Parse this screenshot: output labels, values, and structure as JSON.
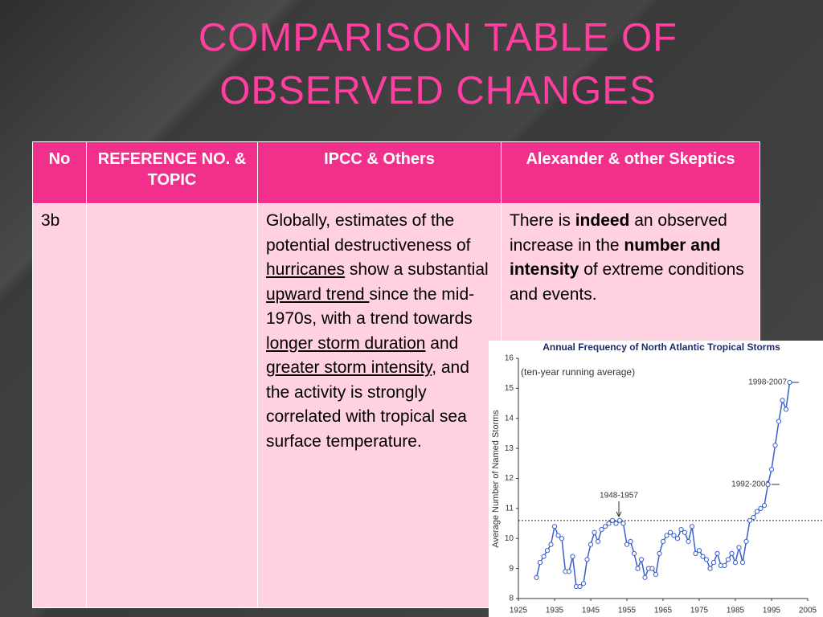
{
  "title": "COMPARISON TABLE OF OBSERVED CHANGES",
  "table": {
    "header": [
      "No",
      "REFERENCE NO. & TOPIC",
      "IPCC & Others",
      "Alexander & other Skeptics"
    ],
    "rows": [
      {
        "no": "3b",
        "ipcc": [
          "Globally, estimates of the potential destructiveness of ",
          "hurricanes",
          " show a substantial ",
          "upward trend ",
          "since the mid-1970s, with a trend towards ",
          "longer storm duration",
          " and ",
          "greater storm intensity",
          ", and the activity is strongly correlated with tropical sea surface temperature."
        ],
        "skeptics": [
          "There is ",
          "indeed",
          " an observed increase in the ",
          "number and intensity",
          " of extreme conditions and events."
        ]
      }
    ]
  },
  "chart_data": {
    "type": "line",
    "title": "Annual Frequency of North Atlantic Tropical Storms",
    "subtitle": "(ten-year running average)",
    "y_label": "Average Number of Named Storms",
    "annotations": [
      "1948-1957",
      "1992-2001",
      "1998-2007"
    ],
    "x": [
      1930,
      1931,
      1932,
      1933,
      1934,
      1935,
      1936,
      1937,
      1938,
      1939,
      1940,
      1941,
      1942,
      1943,
      1944,
      1945,
      1946,
      1947,
      1948,
      1949,
      1950,
      1951,
      1952,
      1953,
      1954,
      1955,
      1956,
      1957,
      1958,
      1959,
      1960,
      1961,
      1962,
      1963,
      1964,
      1965,
      1966,
      1967,
      1968,
      1969,
      1970,
      1971,
      1972,
      1973,
      1974,
      1975,
      1976,
      1977,
      1978,
      1979,
      1980,
      1981,
      1982,
      1983,
      1984,
      1985,
      1986,
      1987,
      1988,
      1989,
      1990,
      1991,
      1992,
      1993,
      1994,
      1995,
      1996,
      1997,
      1998,
      1999,
      2000
    ],
    "values": [
      8.7,
      9.2,
      9.4,
      9.6,
      9.8,
      10.4,
      10.1,
      10.0,
      8.9,
      8.9,
      9.4,
      8.4,
      8.4,
      8.5,
      9.3,
      9.8,
      10.2,
      9.9,
      10.3,
      10.4,
      10.5,
      10.6,
      10.5,
      10.6,
      10.5,
      9.8,
      9.9,
      9.5,
      9.0,
      9.3,
      8.7,
      9.0,
      9.0,
      8.8,
      9.5,
      9.9,
      10.1,
      10.2,
      10.1,
      10.0,
      10.3,
      10.2,
      9.9,
      10.4,
      9.5,
      9.6,
      9.4,
      9.3,
      9.0,
      9.2,
      9.5,
      9.1,
      9.1,
      9.3,
      9.5,
      9.2,
      9.7,
      9.2,
      9.9,
      10.6,
      10.7,
      10.9,
      11.0,
      11.1,
      11.8,
      12.3,
      13.1,
      13.9,
      14.6,
      14.3,
      15.2
    ],
    "color": "#3a5fcd",
    "reference_line": 10.6,
    "xlim": [
      1925,
      2005
    ],
    "xticks": [
      1925,
      1935,
      1945,
      1955,
      1965,
      1975,
      1985,
      1995,
      2005
    ],
    "ylim": [
      8,
      16
    ],
    "yticks": [
      8,
      9,
      10,
      11,
      12,
      13,
      14,
      15,
      16
    ]
  }
}
